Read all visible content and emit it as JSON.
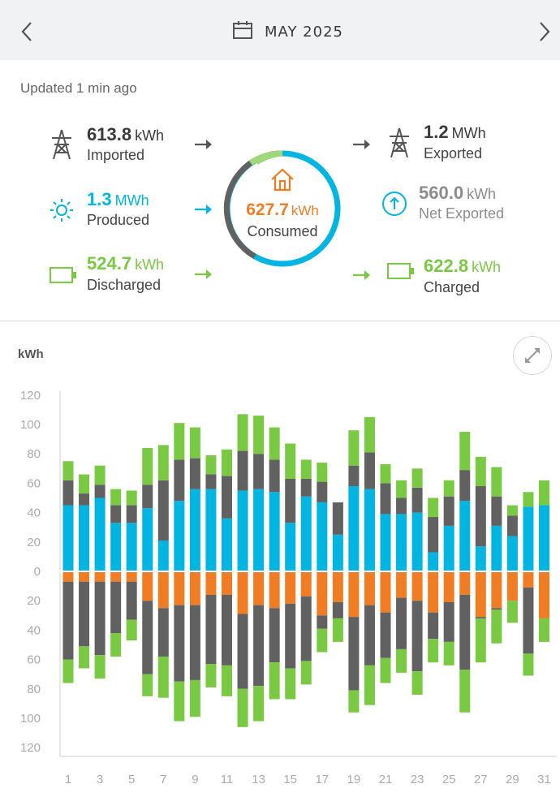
{
  "header": {
    "month": "MAY 2025",
    "prev_icon": "chevron-left-icon",
    "next_icon": "chevron-right-icon",
    "calendar_icon": "calendar-icon"
  },
  "updated": "Updated 1 min ago",
  "stats": {
    "imported": {
      "value": "613.8",
      "unit": "kWh",
      "label": "Imported",
      "icon": "power-tower-icon"
    },
    "produced": {
      "value": "1.3",
      "unit": "MWh",
      "label": "Produced",
      "icon": "sun-icon"
    },
    "discharged": {
      "value": "524.7",
      "unit": "kWh",
      "label": "Discharged",
      "icon": "battery-icon"
    },
    "exported": {
      "value": "1.2",
      "unit": "MWh",
      "label": "Exported",
      "icon": "power-tower-icon"
    },
    "net_exported": {
      "value": "560.0",
      "unit": "kWh",
      "label": "Net Exported",
      "icon": "arrow-up-circle-icon"
    },
    "charged": {
      "value": "622.8",
      "unit": "kWh",
      "label": "Charged",
      "icon": "battery-icon"
    },
    "consumed": {
      "value": "627.7",
      "unit": "kWh",
      "label": "Consumed",
      "icon": "house-icon"
    }
  },
  "colors": {
    "grid": "#616161",
    "solar": "#00b5e2",
    "battery": "#7ac943",
    "home": "#f07c23",
    "text_dark": "#333333",
    "muted": "#8c8c8c"
  },
  "chart_data": {
    "type": "bar",
    "stacked": true,
    "ylabel": "kWh",
    "ylim": [
      -120,
      120
    ],
    "yticks": [
      120,
      100,
      80,
      60,
      40,
      20,
      0,
      20,
      40,
      60,
      80,
      100,
      120
    ],
    "categories": [
      1,
      2,
      3,
      4,
      5,
      6,
      7,
      8,
      9,
      10,
      11,
      12,
      13,
      14,
      15,
      16,
      17,
      18,
      19,
      20,
      21,
      22,
      23,
      24,
      25,
      26,
      27,
      28,
      29,
      30,
      31
    ],
    "xtick_labels": [
      "1",
      "3",
      "5",
      "7",
      "9",
      "11",
      "13",
      "15",
      "17",
      "19",
      "21",
      "23",
      "25",
      "27",
      "29",
      "31"
    ],
    "positive_series": [
      {
        "name": "Solar",
        "color": "#00b5e2",
        "values": [
          45,
          45,
          50,
          33,
          33,
          43,
          21,
          48,
          56,
          56,
          36,
          55,
          56,
          54,
          33,
          51,
          47,
          25,
          58,
          56,
          39,
          39,
          40,
          13,
          31,
          48,
          17,
          31,
          24,
          44,
          45
        ]
      },
      {
        "name": "Grid",
        "color": "#616161",
        "values": [
          17,
          8,
          9,
          12,
          12,
          16,
          41,
          28,
          21,
          10,
          29,
          27,
          24,
          22,
          30,
          12,
          14,
          22,
          14,
          25,
          21,
          11,
          17,
          24,
          20,
          21,
          41,
          20,
          14,
          0,
          0
        ]
      },
      {
        "name": "Battery",
        "color": "#7ac943",
        "values": [
          13,
          13,
          13,
          11,
          10,
          25,
          24,
          25,
          21,
          13,
          18,
          25,
          26,
          22,
          24,
          13,
          13,
          0,
          24,
          24,
          13,
          12,
          13,
          13,
          11,
          26,
          20,
          20,
          7,
          10,
          17
        ]
      }
    ],
    "negative_series": [
      {
        "name": "Home",
        "color": "#f07c23",
        "values": [
          7,
          7,
          7,
          7,
          7,
          20,
          25,
          23,
          23,
          16,
          16,
          29,
          23,
          25,
          22,
          17,
          30,
          21,
          31,
          23,
          28,
          18,
          20,
          28,
          21,
          16,
          31,
          25,
          20,
          11,
          32
        ]
      },
      {
        "name": "Grid",
        "color": "#616161",
        "values": [
          53,
          44,
          50,
          35,
          26,
          50,
          33,
          52,
          51,
          47,
          48,
          51,
          55,
          37,
          44,
          44,
          9,
          11,
          50,
          41,
          31,
          35,
          48,
          18,
          27,
          51,
          1,
          1,
          0,
          45,
          0
        ]
      },
      {
        "name": "Battery",
        "color": "#7ac943",
        "values": [
          16,
          15,
          16,
          16,
          14,
          15,
          28,
          27,
          25,
          16,
          21,
          26,
          24,
          25,
          21,
          16,
          16,
          16,
          15,
          27,
          17,
          16,
          16,
          16,
          16,
          29,
          30,
          23,
          15,
          15,
          16
        ]
      }
    ]
  }
}
